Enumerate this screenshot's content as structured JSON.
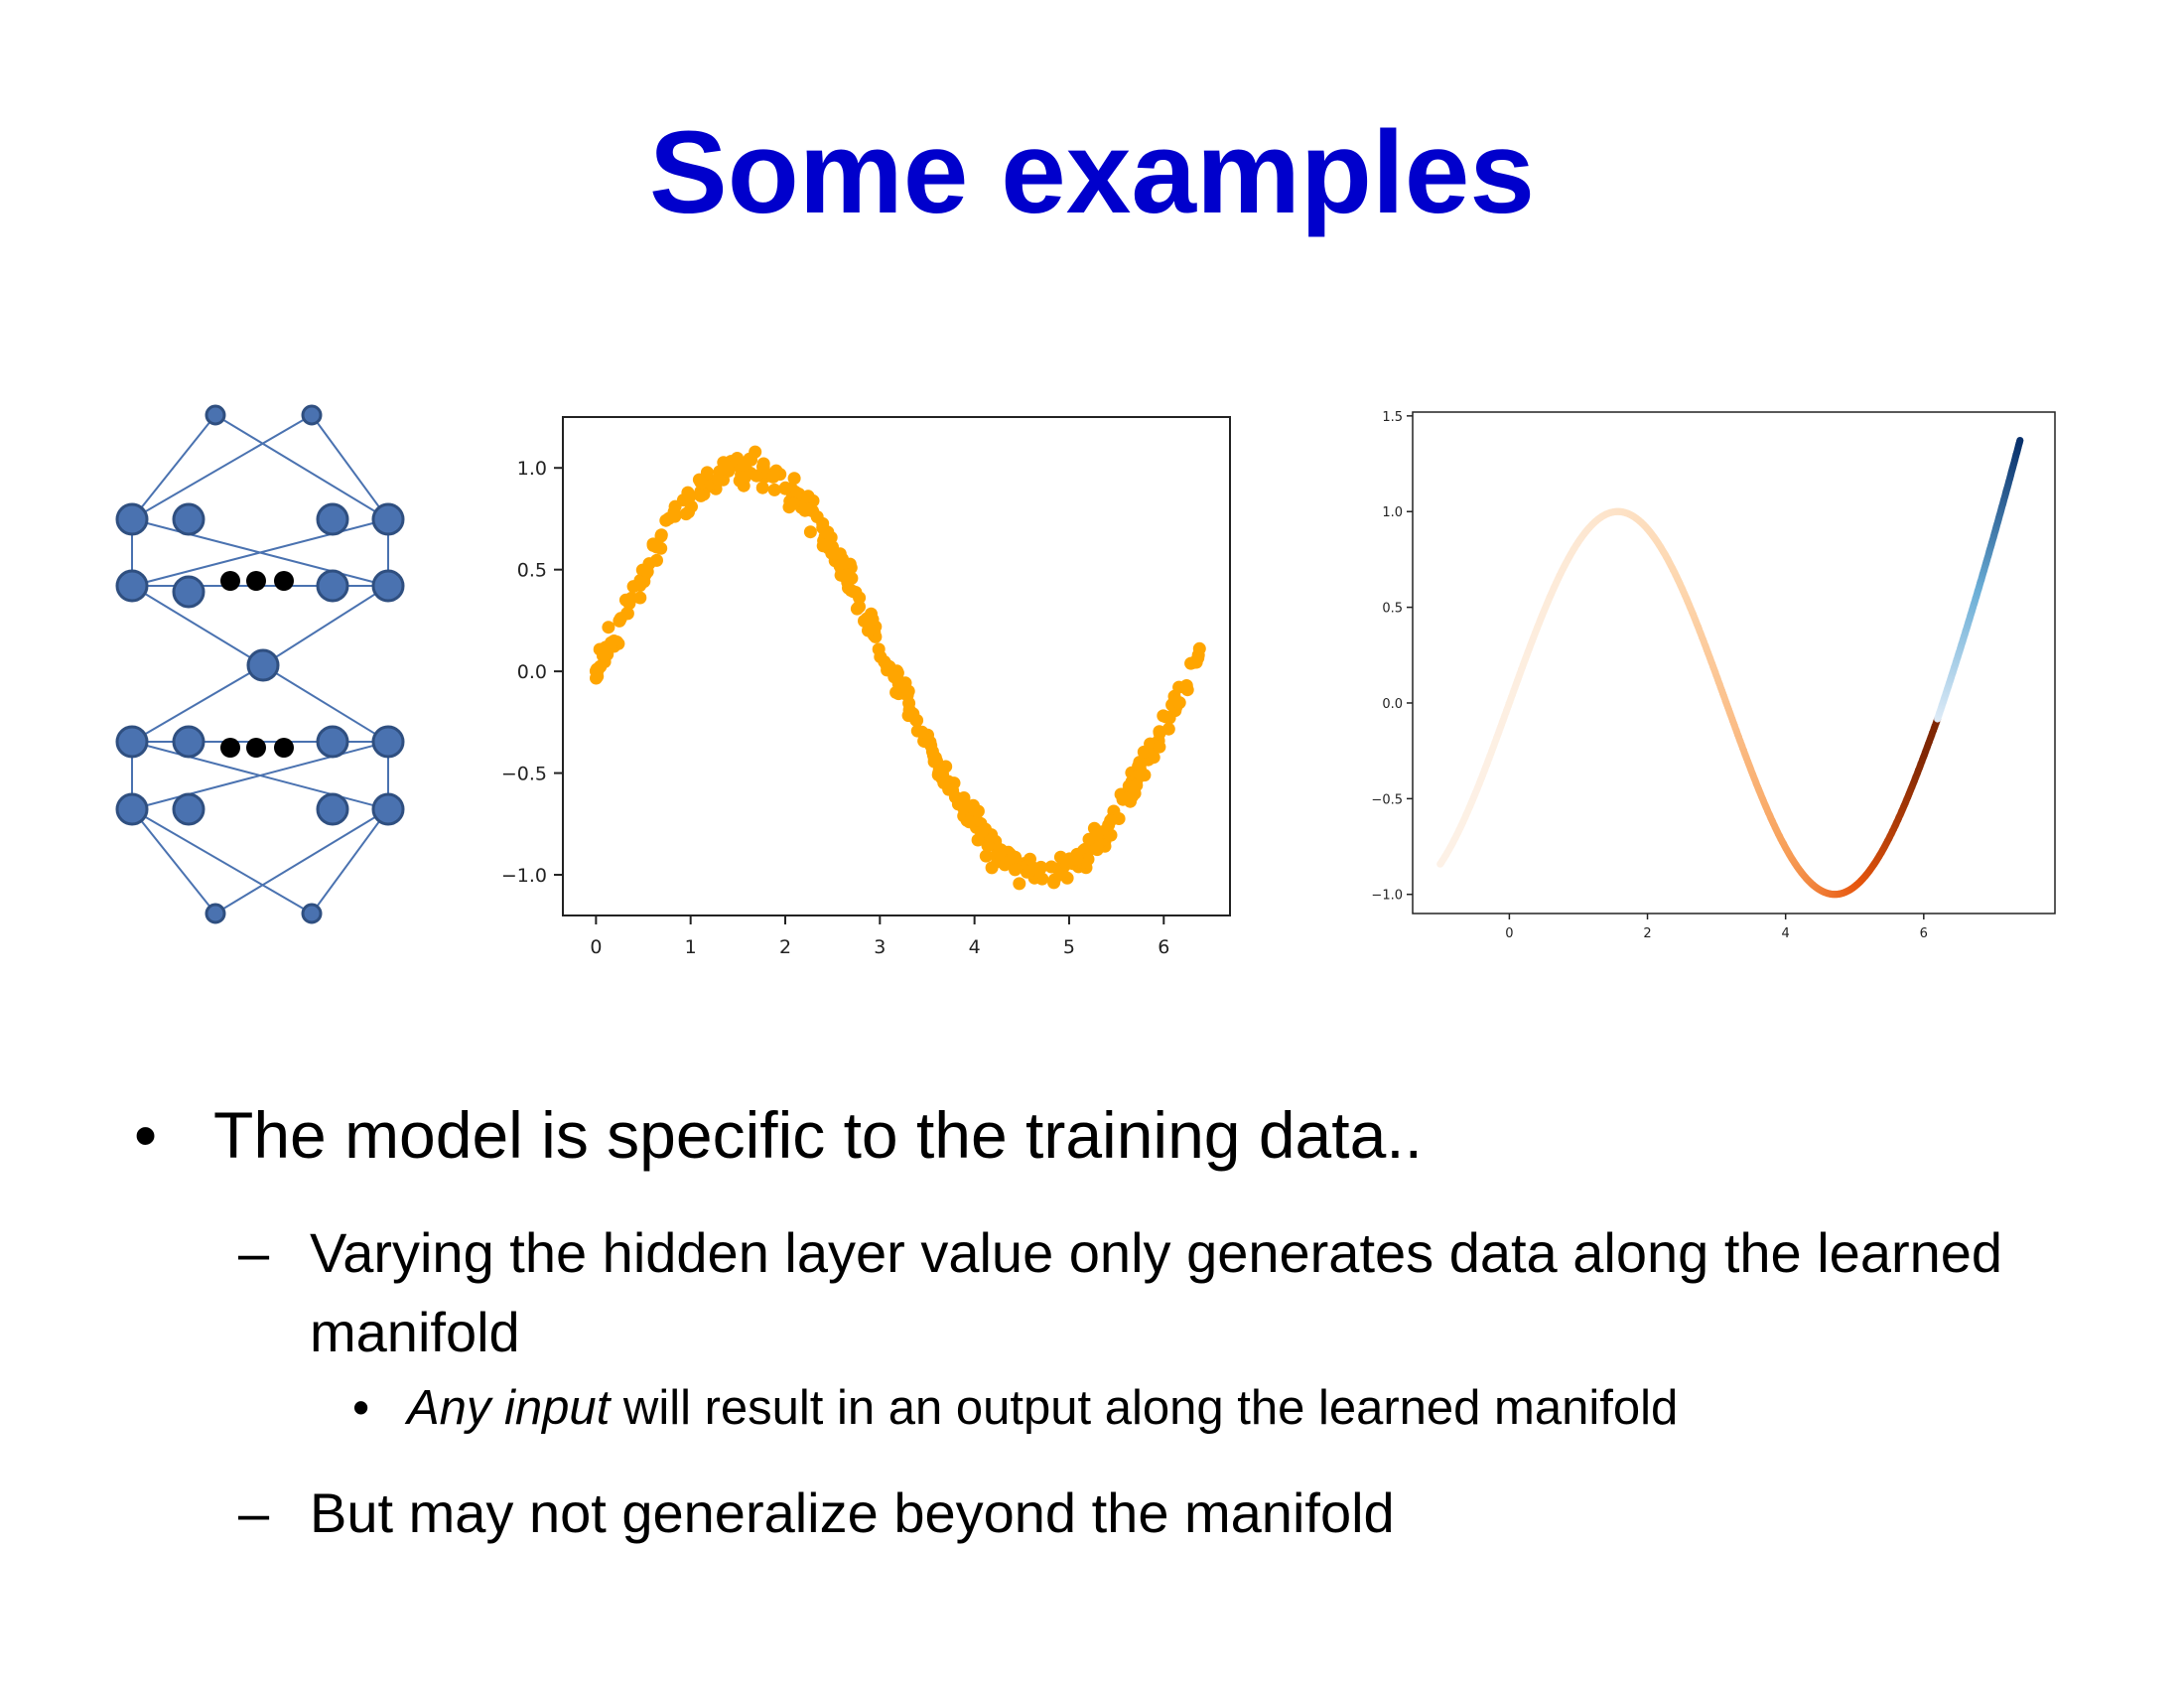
{
  "slide": {
    "title": "Some examples"
  },
  "network_diagram": {
    "node_color": "#4A72B0",
    "ellipsis_color": "#000000"
  },
  "chart_data": [
    {
      "type": "scatter",
      "title": "",
      "xlabel": "",
      "ylabel": "",
      "xlim": [
        -0.35,
        6.7
      ],
      "ylim": [
        -1.2,
        1.25
      ],
      "xticks": [
        "0",
        "1",
        "2",
        "3",
        "4",
        "5",
        "6"
      ],
      "yticks": [
        "1.0",
        "0.5",
        "0.0",
        "−0.5",
        "−1.0"
      ],
      "color": "#FFA500",
      "description_of_data": "noisy samples of y = sin(x)",
      "series": [
        {
          "x_range": [
            0,
            6.4
          ],
          "function": "sin",
          "noise": 0.05,
          "count": 400
        }
      ]
    },
    {
      "type": "scatter",
      "title": "",
      "xlabel": "",
      "ylabel": "",
      "xlim": [
        -1.4,
        7.9
      ],
      "ylim": [
        -1.1,
        1.52
      ],
      "xticks": [
        "0",
        "2",
        "4",
        "6"
      ],
      "yticks": [
        "1.5",
        "1.0",
        "0.5",
        "0.0",
        "−0.5",
        "−1.0"
      ],
      "curve": "y = sin(x) for x in [-1.0, 6.2], extended linearly to (7.4, 1.38)",
      "colormap_left": [
        "#FDF1E6",
        "#FDD6AE",
        "#F8A25C",
        "#E6550D",
        "#7F2704"
      ],
      "colormap_right": [
        "#DEEBF7",
        "#6BAED6",
        "#08306B"
      ]
    }
  ],
  "bullets": {
    "l1_marker": "•",
    "l1_text": "The model is specific to the training data..",
    "l2a_marker": "–",
    "l2a_text": "Varying the hidden layer value only generates data along the learned manifold",
    "l3_marker": "•",
    "l3_emph": "Any input",
    "l3_rest": " will result in an output along the learned manifold",
    "l2b_marker": "–",
    "l2b_text": "But may not generalize beyond the manifold"
  }
}
